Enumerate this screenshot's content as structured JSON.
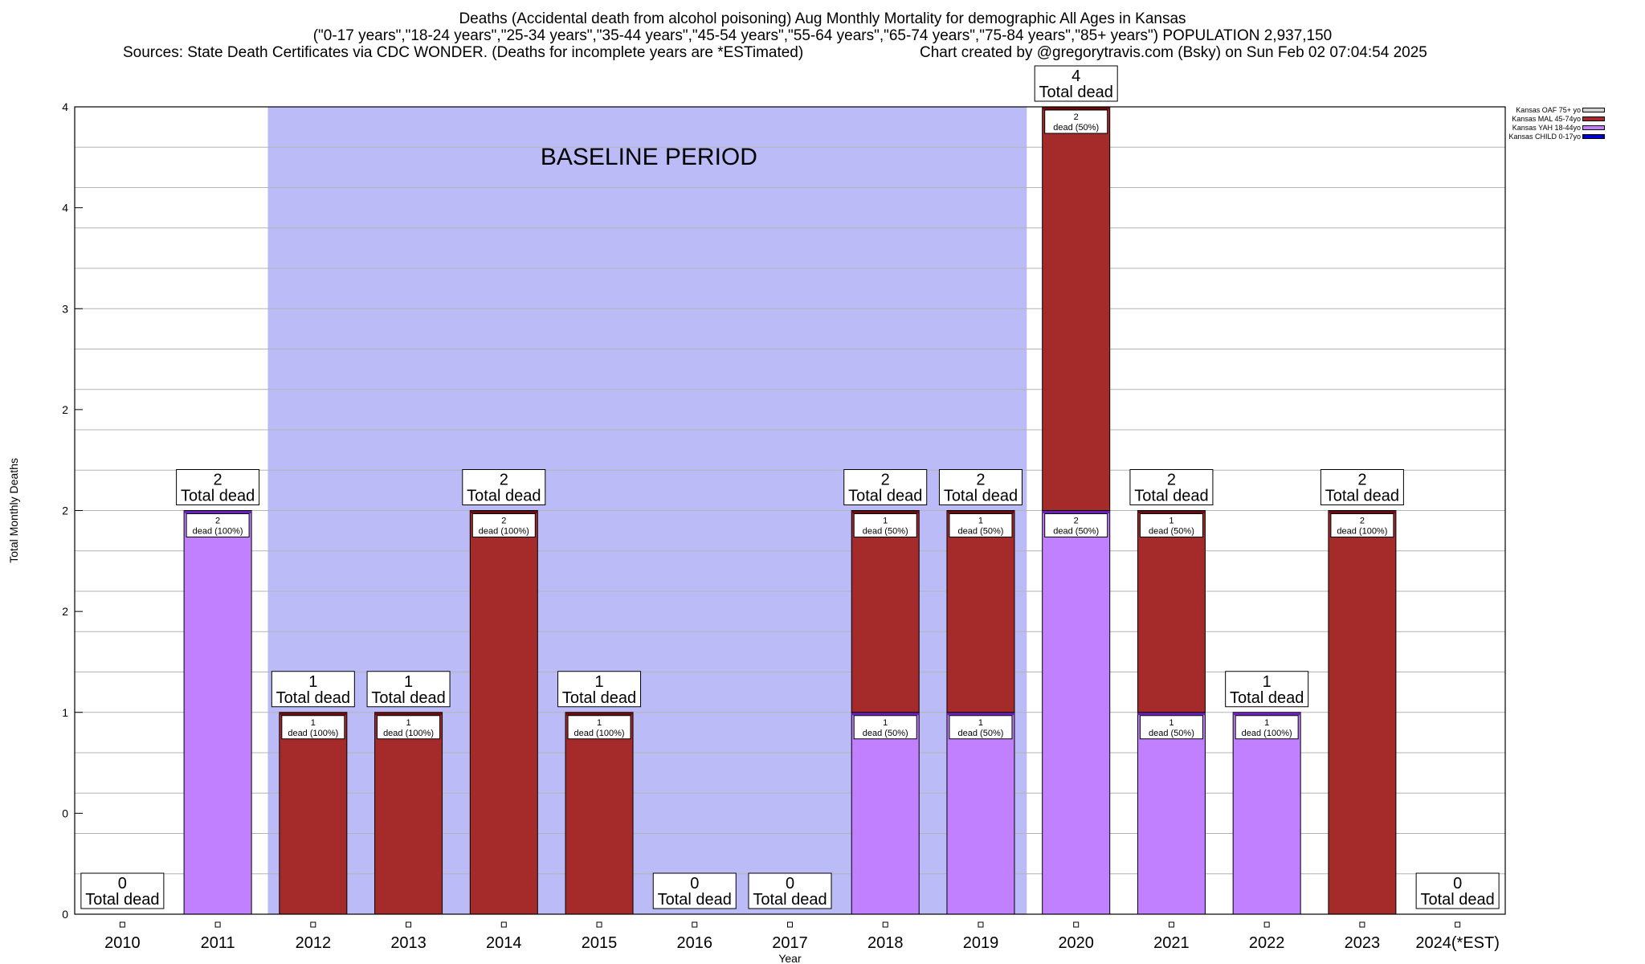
{
  "header": {
    "title_line1": "Deaths (Accidental death from alcohol poisoning) Aug Monthly Mortality for demographic All Ages in Kansas",
    "title_line2": "(\"0-17 years\",\"18-24 years\",\"25-34 years\",\"35-44 years\",\"45-54 years\",\"55-64 years\",\"65-74 years\",\"75-84 years\",\"85+ years\") POPULATION 2,937,150",
    "title_line3_left": "Sources: State Death Certificates via CDC WONDER. (Deaths for incomplete years are *ESTimated)",
    "title_line3_right": "Chart created by @gregorytravis.com (Bsky) on Sun Feb 02 07:04:54 2025"
  },
  "legend": [
    {
      "label": "Kansas OAF 75+ yo",
      "color": "#d3d3d3"
    },
    {
      "label": "Kansas MAL 45-74yo",
      "color": "#a52a2a"
    },
    {
      "label": "Kansas YAH 18-44yo",
      "color": "#c080ff"
    },
    {
      "label": "Kansas CHILD 0-17yo",
      "color": "#0000cd"
    }
  ],
  "chart_data": {
    "type": "bar",
    "stacked": true,
    "xlabel": "Year",
    "ylabel": "Total Monthly Deaths",
    "ylim": [
      0,
      4
    ],
    "y_tick_labels": [
      "0",
      "0",
      "1",
      "2",
      "2",
      "2",
      "3",
      "4",
      "4"
    ],
    "baseline_label": "BASELINE PERIOD",
    "baseline_range": [
      "2012",
      "2019"
    ],
    "total_suffix": "Total dead",
    "categories": [
      "2010",
      "2011",
      "2012",
      "2013",
      "2014",
      "2015",
      "2016",
      "2017",
      "2018",
      "2019",
      "2020",
      "2021",
      "2022",
      "2023",
      "2024(*EST)"
    ],
    "totals": [
      0,
      2,
      1,
      1,
      2,
      1,
      0,
      0,
      2,
      2,
      4,
      2,
      1,
      2,
      0
    ],
    "series": [
      {
        "name": "Kansas CHILD 0-17yo",
        "color": "#0000cd",
        "values": [
          0,
          0,
          0,
          0,
          0,
          0,
          0,
          0,
          0,
          0,
          0,
          0,
          0,
          0,
          0
        ]
      },
      {
        "name": "Kansas YAH 18-44yo",
        "color": "#c080ff",
        "values": [
          0,
          2,
          0,
          0,
          0,
          0,
          0,
          0,
          1,
          1,
          2,
          1,
          1,
          0,
          0
        ],
        "labels": [
          "",
          "2\ndead (100%)",
          "",
          "",
          "",
          "",
          "",
          "",
          "1\ndead (50%)",
          "1\ndead (50%)",
          "2\ndead (50%)",
          "1\ndead (50%)",
          "1\ndead (100%)",
          "",
          ""
        ]
      },
      {
        "name": "Kansas MAL 45-74yo",
        "color": "#a52a2a",
        "values": [
          0,
          0,
          1,
          1,
          2,
          1,
          0,
          0,
          1,
          1,
          2,
          1,
          0,
          2,
          0
        ],
        "labels": [
          "",
          "",
          "1\ndead (100%)",
          "1\ndead (100%)",
          "2\ndead (100%)",
          "1\ndead (100%)",
          "",
          "",
          "1\ndead (50%)",
          "1\ndead (50%)",
          "2\ndead (50%)",
          "1\ndead (50%)",
          "",
          "2\ndead (100%)",
          ""
        ]
      },
      {
        "name": "Kansas OAF 75+ yo",
        "color": "#d3d3d3",
        "values": [
          0,
          0,
          0,
          0,
          0,
          0,
          0,
          0,
          0,
          0,
          0,
          0,
          0,
          0,
          0
        ]
      }
    ],
    "grid": true,
    "legend_position": "top-right",
    "colors": {
      "baseline": "#bbbbf8",
      "gridline": "#b4b4b4"
    }
  }
}
